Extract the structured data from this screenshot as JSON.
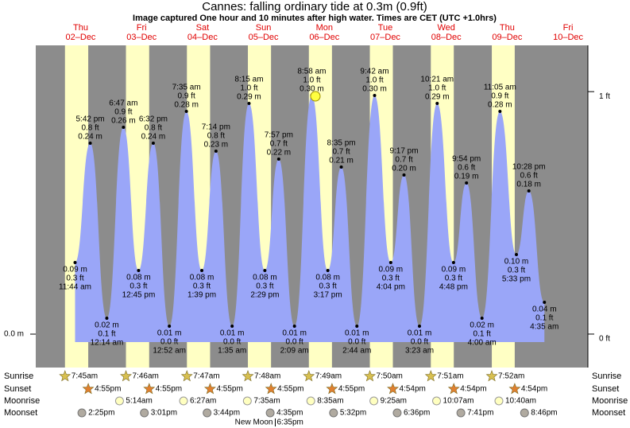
{
  "chart_data": {
    "type": "tide",
    "title": "Cannes: falling  ordinary tide at 0.3m (0.9ft)",
    "subtitle": "Image captured One hour and 10 minutes after high water. Times are CET (UTC +1.0hrs)",
    "ylim": [
      -0.042,
      0.363
    ],
    "yticks": [
      {
        "value": 0,
        "label": "0.0 m"
      }
    ],
    "y2lim": [
      -0.138,
      1.191
    ],
    "y2ticks": [
      {
        "value": 0,
        "label": "0 ft"
      },
      {
        "value": 1,
        "label": "1 ft"
      }
    ],
    "color": "#9aa6f8",
    "row_labels": {
      "sunrise": "Sunrise",
      "sunset": "Sunset",
      "moonrise": "Moonrise",
      "moonset": "Moonset"
    },
    "days": [
      {
        "weekday": "Thu",
        "date": "02–Dec",
        "sunrise": "7:45am",
        "sunset": "4:55pm",
        "moonset": "2:25pm",
        "tides": [
          {
            "time": "11:44 am",
            "height_ft": {
              "value": 0.3,
              "label": "0.3 ft"
            },
            "height_m": {
              "value": 0.09,
              "label": "0.09 m"
            }
          },
          {
            "time": "5:42 pm",
            "height_ft": {
              "value": 0.8,
              "label": "0.8 ft"
            },
            "height_m": {
              "value": 0.24,
              "label": "0.24 m"
            }
          }
        ]
      },
      {
        "weekday": "Fri",
        "date": "03–Dec",
        "sunrise": "7:46am",
        "sunset": "4:55pm",
        "moonrise": "5:14am",
        "moonset": "3:01pm",
        "tides": [
          {
            "time": "12:14 am",
            "height_ft": {
              "value": 0.1,
              "label": "0.1 ft"
            },
            "height_m": {
              "value": 0.02,
              "label": "0.02 m"
            }
          },
          {
            "time": "6:47 am",
            "height_ft": {
              "value": 0.9,
              "label": "0.9 ft"
            },
            "height_m": {
              "value": 0.26,
              "label": "0.26 m"
            }
          },
          {
            "time": "12:45 pm",
            "height_ft": {
              "value": 0.3,
              "label": "0.3 ft"
            },
            "height_m": {
              "value": 0.08,
              "label": "0.08 m"
            }
          },
          {
            "time": "6:32 pm",
            "height_ft": {
              "value": 0.8,
              "label": "0.8 ft"
            },
            "height_m": {
              "value": 0.24,
              "label": "0.24 m"
            }
          }
        ]
      },
      {
        "weekday": "Sat",
        "date": "04–Dec",
        "sunrise": "7:47am",
        "sunset": "4:55pm",
        "moonrise": "6:27am",
        "moonset": "3:44pm",
        "tides": [
          {
            "time": "12:52 am",
            "height_ft": {
              "value": 0.0,
              "label": "0.0 ft"
            },
            "height_m": {
              "value": 0.01,
              "label": "0.01 m"
            }
          },
          {
            "time": "7:35 am",
            "height_ft": {
              "value": 0.9,
              "label": "0.9 ft"
            },
            "height_m": {
              "value": 0.28,
              "label": "0.28 m"
            }
          },
          {
            "time": "1:39 pm",
            "height_ft": {
              "value": 0.3,
              "label": "0.3 ft"
            },
            "height_m": {
              "value": 0.08,
              "label": "0.08 m"
            }
          },
          {
            "time": "7:14 pm",
            "height_ft": {
              "value": 0.8,
              "label": "0.8 ft"
            },
            "height_m": {
              "value": 0.23,
              "label": "0.23 m"
            }
          }
        ]
      },
      {
        "weekday": "Sun",
        "date": "05–Dec",
        "sunrise": "7:48am",
        "sunset": "4:55pm",
        "moonrise": "7:35am",
        "moonset": "4:35pm",
        "new_moon": {
          "label": "New Moon",
          "time": "6:35pm"
        },
        "tides": [
          {
            "time": "1:35 am",
            "height_ft": {
              "value": 0.0,
              "label": "0.0 ft"
            },
            "height_m": {
              "value": 0.01,
              "label": "0.01 m"
            }
          },
          {
            "time": "8:15 am",
            "height_ft": {
              "value": 1.0,
              "label": "1.0 ft"
            },
            "height_m": {
              "value": 0.29,
              "label": "0.29 m"
            }
          },
          {
            "time": "2:29 pm",
            "height_ft": {
              "value": 0.3,
              "label": "0.3 ft"
            },
            "height_m": {
              "value": 0.08,
              "label": "0.08 m"
            }
          },
          {
            "time": "7:57 pm",
            "height_ft": {
              "value": 0.7,
              "label": "0.7 ft"
            },
            "height_m": {
              "value": 0.22,
              "label": "0.22 m"
            }
          }
        ]
      },
      {
        "weekday": "Mon",
        "date": "06–Dec",
        "sunrise": "7:49am",
        "sunset": "4:55pm",
        "moonrise": "8:35am",
        "moonset": "5:32pm",
        "tides": [
          {
            "time": "2:09 am",
            "height_ft": {
              "value": 0.0,
              "label": "0.0 ft"
            },
            "height_m": {
              "value": 0.01,
              "label": "0.01 m"
            }
          },
          {
            "time": "8:58 am",
            "height_ft": {
              "value": 1.0,
              "label": "1.0 ft"
            },
            "height_m": {
              "value": 0.3,
              "label": "0.30 m"
            }
          },
          {
            "time": "3:17 pm",
            "height_ft": {
              "value": 0.3,
              "label": "0.3 ft"
            },
            "height_m": {
              "value": 0.08,
              "label": "0.08 m"
            }
          },
          {
            "time": "8:35 pm",
            "height_ft": {
              "value": 0.7,
              "label": "0.7 ft"
            },
            "height_m": {
              "value": 0.21,
              "label": "0.21 m"
            }
          }
        ]
      },
      {
        "weekday": "Tue",
        "date": "07–Dec",
        "sunrise": "7:50am",
        "sunset": "4:54pm",
        "moonrise": "9:25am",
        "moonset": "6:36pm",
        "tides": [
          {
            "time": "2:44 am",
            "height_ft": {
              "value": 0.0,
              "label": "0.0 ft"
            },
            "height_m": {
              "value": 0.01,
              "label": "0.01 m"
            }
          },
          {
            "time": "9:42 am",
            "height_ft": {
              "value": 1.0,
              "label": "1.0 ft"
            },
            "height_m": {
              "value": 0.3,
              "label": "0.30 m"
            }
          },
          {
            "time": "4:04 pm",
            "height_ft": {
              "value": 0.3,
              "label": "0.3 ft"
            },
            "height_m": {
              "value": 0.09,
              "label": "0.09 m"
            }
          },
          {
            "time": "9:17 pm",
            "height_ft": {
              "value": 0.7,
              "label": "0.7 ft"
            },
            "height_m": {
              "value": 0.2,
              "label": "0.20 m"
            }
          }
        ]
      },
      {
        "weekday": "Wed",
        "date": "08–Dec",
        "sunrise": "7:51am",
        "sunset": "4:54pm",
        "moonrise": "10:07am",
        "moonset": "7:41pm",
        "tides": [
          {
            "time": "3:23 am",
            "height_ft": {
              "value": 0.0,
              "label": "0.0 ft"
            },
            "height_m": {
              "value": 0.01,
              "label": "0.01 m"
            }
          },
          {
            "time": "10:21 am",
            "height_ft": {
              "value": 1.0,
              "label": "1.0 ft"
            },
            "height_m": {
              "value": 0.29,
              "label": "0.29 m"
            }
          },
          {
            "time": "4:48 pm",
            "height_ft": {
              "value": 0.3,
              "label": "0.3 ft"
            },
            "height_m": {
              "value": 0.09,
              "label": "0.09 m"
            }
          },
          {
            "time": "9:54 pm",
            "height_ft": {
              "value": 0.6,
              "label": "0.6 ft"
            },
            "height_m": {
              "value": 0.19,
              "label": "0.19 m"
            }
          }
        ]
      },
      {
        "weekday": "Thu",
        "date": "09–Dec",
        "sunrise": "7:52am",
        "sunset": "4:54pm",
        "moonrise": "10:40am",
        "moonset": "8:46pm",
        "tides": [
          {
            "time": "4:00 am",
            "height_ft": {
              "value": 0.1,
              "label": "0.1 ft"
            },
            "height_m": {
              "value": 0.02,
              "label": "0.02 m"
            }
          },
          {
            "time": "11:05 am",
            "height_ft": {
              "value": 0.9,
              "label": "0.9 ft"
            },
            "height_m": {
              "value": 0.28,
              "label": "0.28 m"
            }
          },
          {
            "time": "5:33 pm",
            "height_ft": {
              "value": 0.3,
              "label": "0.3 ft"
            },
            "height_m": {
              "value": 0.1,
              "label": "0.10 m"
            }
          },
          {
            "time": "10:28 pm",
            "height_ft": {
              "value": 0.6,
              "label": "0.6 ft"
            },
            "height_m": {
              "value": 0.18,
              "label": "0.18 m"
            }
          }
        ]
      },
      {
        "weekday": "Fri",
        "date": "10–Dec",
        "tides": [
          {
            "time": "4:35 am",
            "height_ft": {
              "value": 0.1,
              "label": "0.1 ft"
            },
            "height_m": {
              "value": 0.04,
              "label": "0.04 m"
            }
          }
        ]
      }
    ]
  }
}
